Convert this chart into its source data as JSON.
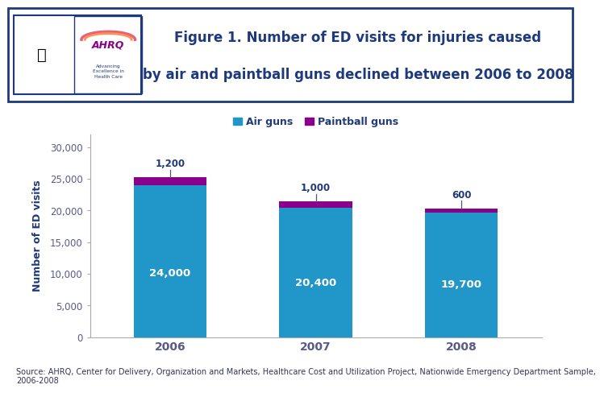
{
  "title_line1": "Figure 1. Number of ED visits for injuries caused",
  "title_line2": "by air and paintball guns declined between 2006 to 2008",
  "title_color": "#1F3A7A",
  "title_fontsize": 12,
  "categories": [
    "2006",
    "2007",
    "2008"
  ],
  "air_guns_values": [
    24000,
    20400,
    19700
  ],
  "paintball_values": [
    1200,
    1000,
    600
  ],
  "air_guns_color": "#2196C8",
  "paintball_color": "#8B008B",
  "ylabel": "Number of ED visits",
  "ylabel_color": "#1F3A7A",
  "ylim": [
    0,
    32000
  ],
  "yticks": [
    0,
    5000,
    10000,
    15000,
    20000,
    25000,
    30000
  ],
  "ytick_labels": [
    "0",
    "5,000",
    "10,000",
    "15,000",
    "20,000",
    "25,000",
    "30,000"
  ],
  "bar_labels": [
    "24,000",
    "20,400",
    "19,700"
  ],
  "bar_label_color": "#FFFFFF",
  "paintball_labels": [
    "1,200",
    "1,000",
    "600"
  ],
  "paintball_label_color": "#1F3A7A",
  "legend_labels": [
    "Air guns",
    "Paintball guns"
  ],
  "source_text": "Source: AHRQ, Center for Delivery, Organization and Markets, Healthcare Cost and Utilization Project, Nationwide Emergency Department Sample,\n2006-2008",
  "source_fontsize": 7.0,
  "bg_color": "#FFFFFF",
  "separator_color": "#1F3A7A",
  "bar_width": 0.5,
  "tick_label_color": "#5A5A8A",
  "axis_color": "#AAAAAA",
  "logo_bg": "#4A90C8",
  "logo_inner_bg": "#FFFFFF",
  "ahrq_color": "#8B008B",
  "hhs_color": "#4A90C8",
  "advancing_color": "#1F3A7A",
  "header_border_color": "#1F3A7A"
}
